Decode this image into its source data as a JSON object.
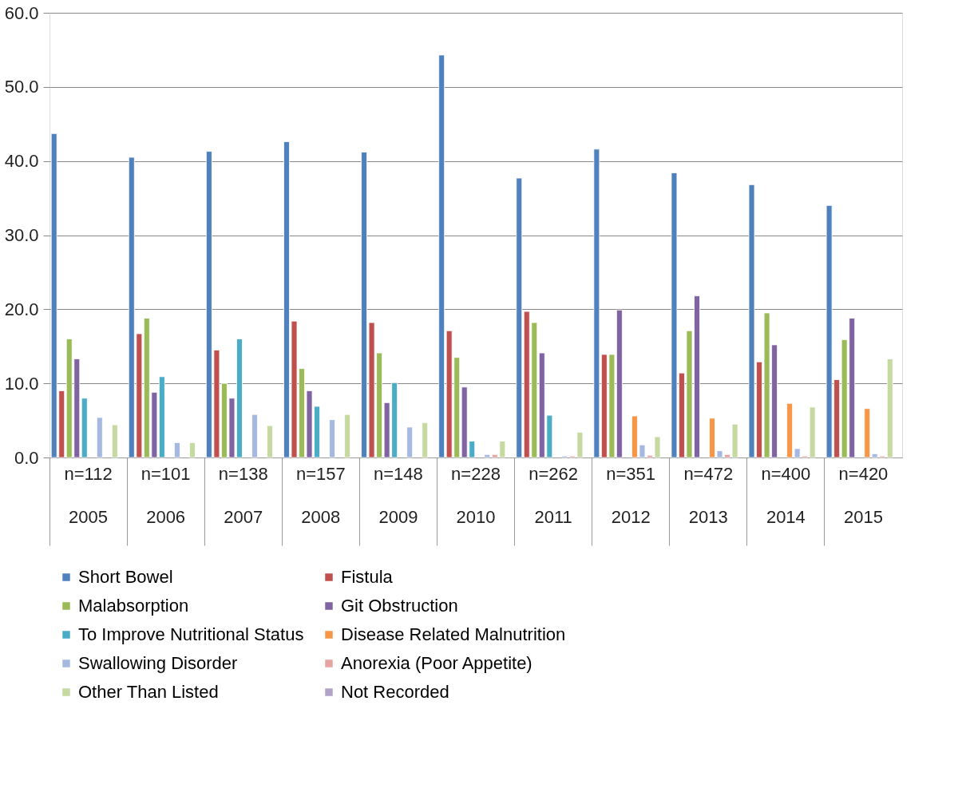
{
  "chart_data": {
    "type": "bar",
    "categories": [
      "n=112\n2005",
      "n=101\n2006",
      "n=138\n2007",
      "n=157\n2008",
      "n=148\n2009",
      "n=228\n2010",
      "n=262\n2011",
      "n=351\n2012",
      "n=472\n2013",
      "n=400\n2014",
      "n=420\n2015"
    ],
    "series": [
      {
        "name": "Short Bowel",
        "color": "#4f81bd",
        "values": [
          43.7,
          40.5,
          41.3,
          42.6,
          41.2,
          54.3,
          37.7,
          41.6,
          38.4,
          36.8,
          34.0
        ]
      },
      {
        "name": "Fistula",
        "color": "#c0504d",
        "values": [
          9.0,
          16.7,
          14.5,
          18.4,
          18.2,
          17.1,
          19.7,
          13.9,
          11.4,
          12.9,
          10.5
        ]
      },
      {
        "name": "Malabsorption",
        "color": "#9bbb59",
        "values": [
          16.0,
          18.8,
          10.0,
          12.0,
          14.1,
          13.5,
          18.2,
          13.9,
          17.1,
          19.5,
          15.9
        ]
      },
      {
        "name": "Git Obstruction",
        "color": "#8064a2",
        "values": [
          13.3,
          8.8,
          8.0,
          9.0,
          7.4,
          9.5,
          14.1,
          19.9,
          21.8,
          15.2,
          18.8
        ]
      },
      {
        "name": "To Improve Nutritional Status",
        "color": "#4bacc6",
        "values": [
          8.0,
          10.9,
          16.0,
          6.9,
          10.1,
          2.2,
          5.7,
          null,
          null,
          null,
          null
        ]
      },
      {
        "name": "Disease Related Malnutrition",
        "color": "#f79646",
        "values": [
          null,
          null,
          null,
          null,
          null,
          null,
          null,
          5.6,
          5.3,
          7.3,
          6.6
        ]
      },
      {
        "name": "Swallowing Disorder",
        "color": "#a5b9e0",
        "values": [
          5.4,
          2.0,
          5.8,
          5.1,
          4.1,
          0.4,
          0.2,
          1.7,
          0.9,
          1.2,
          0.5
        ]
      },
      {
        "name": "Anorexia (Poor Appetite)",
        "color": "#e6a4a0",
        "values": [
          null,
          null,
          null,
          null,
          null,
          0.4,
          0.2,
          0.3,
          0.4,
          0.2,
          0.2
        ]
      },
      {
        "name": "Other Than Listed",
        "color": "#c6d9a0",
        "values": [
          4.4,
          2.0,
          4.3,
          5.8,
          4.7,
          2.2,
          3.4,
          2.8,
          4.5,
          6.8,
          13.3
        ]
      },
      {
        "name": "Not Recorded",
        "color": "#b3a2c7",
        "values": [
          null,
          null,
          null,
          null,
          null,
          null,
          null,
          null,
          null,
          null,
          null
        ]
      }
    ],
    "ylim": [
      0,
      60
    ],
    "yticks": [
      {
        "value": 0,
        "label": "0.0"
      },
      {
        "value": 10,
        "label": "10.0"
      },
      {
        "value": 20,
        "label": "20.0"
      },
      {
        "value": 30,
        "label": "30.0"
      },
      {
        "value": 40,
        "label": "40.0"
      },
      {
        "value": 50,
        "label": "50.0"
      },
      {
        "value": 60,
        "label": "60.0"
      }
    ],
    "grid": "y",
    "legend": "bottom"
  }
}
